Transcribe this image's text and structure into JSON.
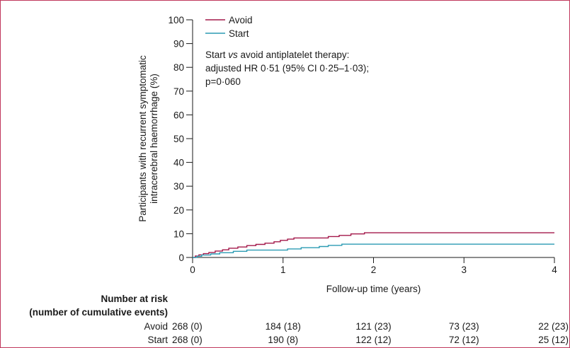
{
  "chart_data": {
    "type": "line",
    "step": true,
    "xlabel": "Follow-up time (years)",
    "ylabel_lines": [
      "Participants with recurrent symptomatic",
      "intracerebral haemorrhage (%)"
    ],
    "xlim": [
      0,
      4
    ],
    "ylim": [
      0,
      100
    ],
    "xticks": [
      0,
      1,
      2,
      3,
      4
    ],
    "yticks": [
      0,
      10,
      20,
      30,
      40,
      50,
      60,
      70,
      80,
      90,
      100
    ],
    "grid": false,
    "legend_position": "top-left",
    "annotation_lines": [
      "Start vs avoid antiplatelet therapy:",
      "adjusted HR 0·51 (95% CI 0·25–1·03);",
      "p=0·060"
    ],
    "series": [
      {
        "name": "Avoid",
        "color": "#a3184a",
        "x": [
          0,
          0.03,
          0.07,
          0.12,
          0.18,
          0.25,
          0.33,
          0.4,
          0.5,
          0.6,
          0.7,
          0.8,
          0.9,
          0.97,
          1.05,
          1.12,
          1.3,
          1.5,
          1.62,
          1.75,
          1.9,
          2.0,
          4.0
        ],
        "y": [
          0,
          0.6,
          1.1,
          1.6,
          2.1,
          2.7,
          3.2,
          3.9,
          4.4,
          5.0,
          5.5,
          6.0,
          6.6,
          7.2,
          7.7,
          8.2,
          8.2,
          8.8,
          9.3,
          9.9,
          10.4,
          10.4,
          10.4
        ]
      },
      {
        "name": "Start",
        "color": "#2b9bb3",
        "x": [
          0,
          0.05,
          0.1,
          0.2,
          0.3,
          0.45,
          0.6,
          1.05,
          1.2,
          1.4,
          1.5,
          1.65,
          1.7,
          4.0
        ],
        "y": [
          0,
          0.5,
          1.0,
          1.5,
          2.0,
          2.6,
          3.1,
          3.6,
          4.1,
          4.6,
          5.1,
          5.6,
          5.6,
          5.6
        ]
      }
    ],
    "risk_table": {
      "title_lines": [
        "Number at risk",
        "(number of cumulative events)"
      ],
      "rows": [
        {
          "label": "Avoid",
          "cells": [
            "268 (0)",
            "184 (18)",
            "121 (23)",
            "73 (23)",
            "22 (23)"
          ]
        },
        {
          "label": "Start",
          "cells": [
            "268 (0)",
            "190 (8)",
            "122 (12)",
            "72 (12)",
            "25 (12)"
          ]
        }
      ]
    }
  },
  "colors": {
    "border": "#c0385d",
    "axis": "#1a1a1a"
  }
}
